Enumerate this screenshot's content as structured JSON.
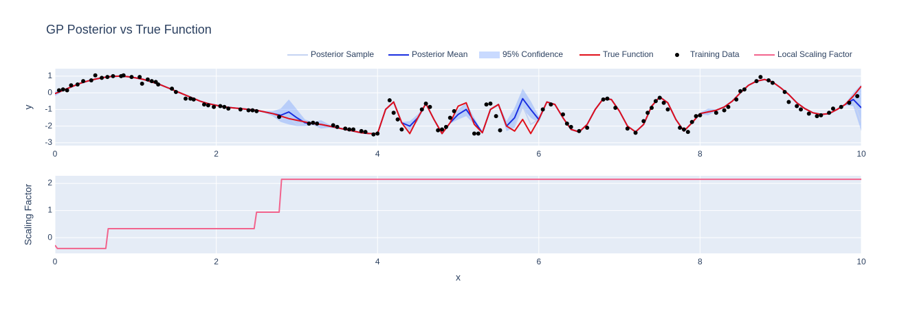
{
  "chart_data": [
    {
      "type": "line",
      "title": "GP Posterior vs True Function",
      "y_label": "y",
      "xlim": [
        0,
        10
      ],
      "xticks": [
        0,
        2,
        4,
        6,
        8,
        10
      ],
      "ylim": [
        -3.17,
        1.45
      ],
      "yticks": [
        -3,
        -2,
        -1,
        0,
        1
      ],
      "grid": true,
      "legend": "top right",
      "x": [
        0,
        0.1,
        0.2,
        0.3,
        0.4,
        0.5,
        0.6,
        0.7,
        0.8,
        0.9,
        1,
        1.1,
        1.2,
        1.3,
        1.4,
        1.5,
        1.6,
        1.7,
        1.8,
        1.9,
        2,
        2.1,
        2.2,
        2.3,
        2.4,
        2.5,
        2.6,
        2.7,
        2.8,
        2.9,
        3,
        3.1,
        3.2,
        3.3,
        3.4,
        3.5,
        3.6,
        3.7,
        3.8,
        3.9,
        4,
        4.1,
        4.2,
        4.3,
        4.4,
        4.5,
        4.6,
        4.7,
        4.8,
        4.9,
        5,
        5.1,
        5.2,
        5.3,
        5.4,
        5.5,
        5.6,
        5.7,
        5.8,
        5.9,
        6,
        6.1,
        6.2,
        6.3,
        6.4,
        6.5,
        6.6,
        6.7,
        6.8,
        6.9,
        7,
        7.1,
        7.2,
        7.3,
        7.4,
        7.5,
        7.6,
        7.7,
        7.8,
        7.9,
        8,
        8.1,
        8.2,
        8.3,
        8.4,
        8.5,
        8.6,
        8.7,
        8.8,
        8.9,
        9,
        9.1,
        9.2,
        9.3,
        9.4,
        9.5,
        9.6,
        9.7,
        9.8,
        9.9,
        10
      ],
      "series": [
        {
          "name": "Posterior Sample",
          "mode": "lines",
          "color": "#c5d3f2",
          "values": [
            -0.05,
            0.15,
            0.35,
            0.55,
            0.7,
            0.82,
            0.92,
            0.98,
            1.0,
            0.97,
            0.9,
            0.8,
            0.65,
            0.5,
            0.3,
            0.1,
            -0.1,
            -0.3,
            -0.5,
            -0.65,
            -0.75,
            -0.85,
            -0.9,
            -0.95,
            -1.0,
            -1.05,
            -1.15,
            -1.25,
            -1.6,
            -1.5,
            -1.9,
            -1.8,
            -1.85,
            -1.9,
            -2.0,
            -2.1,
            -2.2,
            -2.3,
            -2.4,
            -2.45,
            -2.45,
            -1.0,
            -0.55,
            -1.8,
            -2.3,
            -1.5,
            -0.65,
            -1.6,
            -2.45,
            -1.8,
            -1.3,
            -0.8,
            -1.7,
            -2.4,
            -1.0,
            -0.7,
            -2.0,
            -2.0,
            -0.8,
            -1.9,
            -1.6,
            -0.55,
            -0.7,
            -1.5,
            -2.2,
            -2.35,
            -1.9,
            -1.0,
            -0.35,
            -0.4,
            -1.1,
            -2.0,
            -2.35,
            -1.9,
            -0.8,
            -0.25,
            -0.6,
            -1.6,
            -2.3,
            -1.8,
            -1.25,
            -1.15,
            -1.05,
            -0.85,
            -0.5,
            0.0,
            0.45,
            0.7,
            0.8,
            0.65,
            0.3,
            -0.1,
            -0.6,
            -0.95,
            -1.2,
            -1.3,
            -1.25,
            -1.0,
            -0.7,
            -0.4,
            -1.8
          ]
        },
        {
          "name": "Posterior Mean",
          "mode": "lines",
          "color": "#1a2fe0",
          "values": [
            -0.05,
            0.15,
            0.35,
            0.55,
            0.7,
            0.82,
            0.92,
            0.98,
            1.0,
            0.97,
            0.9,
            0.8,
            0.65,
            0.5,
            0.3,
            0.1,
            -0.1,
            -0.3,
            -0.5,
            -0.65,
            -0.75,
            -0.85,
            -0.9,
            -0.95,
            -1.0,
            -1.05,
            -1.15,
            -1.25,
            -1.35,
            -1.15,
            -1.5,
            -1.8,
            -1.85,
            -1.9,
            -2.0,
            -2.1,
            -2.2,
            -2.3,
            -2.4,
            -2.45,
            -2.45,
            -1.0,
            -0.55,
            -1.8,
            -2.0,
            -1.5,
            -0.65,
            -1.6,
            -2.45,
            -1.8,
            -1.3,
            -1.0,
            -1.7,
            -2.4,
            -1.0,
            -0.7,
            -2.0,
            -1.5,
            -0.35,
            -1.0,
            -1.6,
            -0.55,
            -0.7,
            -1.5,
            -2.2,
            -2.35,
            -1.9,
            -1.0,
            -0.35,
            -0.4,
            -1.1,
            -2.0,
            -2.35,
            -1.9,
            -0.8,
            -0.25,
            -0.6,
            -1.6,
            -2.3,
            -1.8,
            -1.25,
            -1.15,
            -1.05,
            -0.85,
            -0.5,
            0.0,
            0.45,
            0.7,
            0.8,
            0.65,
            0.3,
            -0.1,
            -0.6,
            -0.95,
            -1.2,
            -1.3,
            -1.25,
            -1.0,
            -0.7,
            -0.4,
            -0.9
          ]
        },
        {
          "name": "95% Confidence",
          "mode": "band",
          "around": 1,
          "color": "rgba(100,150,255,0.35)",
          "values": [
            0.15,
            0.05,
            0.05,
            0.05,
            0.05,
            0.05,
            0.05,
            0.05,
            0.05,
            0.05,
            0.05,
            0.05,
            0.05,
            0.05,
            0.05,
            0.05,
            0.05,
            0.05,
            0.05,
            0.05,
            0.05,
            0.05,
            0.05,
            0.05,
            0.05,
            0.05,
            0.05,
            0.15,
            0.4,
            0.75,
            0.5,
            0.2,
            0.1,
            0.25,
            0.1,
            0.05,
            0.05,
            0.05,
            0.05,
            0.05,
            0.05,
            0.05,
            0.05,
            0.05,
            0.3,
            0.2,
            0.05,
            0.05,
            0.05,
            0.05,
            0.3,
            0.4,
            0.2,
            0.05,
            0.05,
            0.05,
            0.3,
            0.6,
            0.6,
            0.5,
            0.2,
            0.05,
            0.05,
            0.05,
            0.05,
            0.05,
            0.05,
            0.05,
            0.05,
            0.05,
            0.05,
            0.05,
            0.05,
            0.05,
            0.05,
            0.05,
            0.05,
            0.05,
            0.05,
            0.05,
            0.05,
            0.2,
            0.05,
            0.05,
            0.05,
            0.05,
            0.05,
            0.05,
            0.05,
            0.05,
            0.05,
            0.05,
            0.05,
            0.05,
            0.05,
            0.05,
            0.05,
            0.05,
            0.05,
            0.4,
            1.4
          ]
        },
        {
          "name": "True Function",
          "mode": "lines",
          "color": "#e0101a",
          "values": [
            -0.05,
            0.15,
            0.35,
            0.55,
            0.7,
            0.82,
            0.92,
            0.98,
            1.0,
            0.97,
            0.9,
            0.8,
            0.65,
            0.5,
            0.3,
            0.1,
            -0.1,
            -0.3,
            -0.5,
            -0.65,
            -0.75,
            -0.85,
            -0.9,
            -0.95,
            -1.0,
            -1.05,
            -1.15,
            -1.25,
            -1.4,
            -1.55,
            -1.65,
            -1.75,
            -1.85,
            -1.9,
            -2.0,
            -2.1,
            -2.2,
            -2.3,
            -2.4,
            -2.45,
            -2.45,
            -1.0,
            -0.55,
            -1.8,
            -2.45,
            -1.5,
            -0.65,
            -1.6,
            -2.45,
            -1.8,
            -0.8,
            -0.6,
            -1.9,
            -2.4,
            -1.0,
            -0.7,
            -2.0,
            -2.3,
            -1.6,
            -2.45,
            -1.6,
            -0.55,
            -0.7,
            -1.5,
            -2.2,
            -2.35,
            -1.9,
            -1.0,
            -0.35,
            -0.4,
            -1.1,
            -2.0,
            -2.35,
            -1.9,
            -0.8,
            -0.25,
            -0.6,
            -1.6,
            -2.3,
            -1.8,
            -1.25,
            -1.15,
            -1.05,
            -0.85,
            -0.5,
            0.0,
            0.45,
            0.7,
            0.8,
            0.65,
            0.3,
            -0.1,
            -0.6,
            -0.95,
            -1.2,
            -1.3,
            -1.25,
            -1.0,
            -0.7,
            -0.2,
            0.4
          ]
        },
        {
          "name": "Training Data",
          "mode": "markers",
          "color": "#000000",
          "x": [
            0.05,
            0.1,
            0.15,
            0.2,
            0.28,
            0.35,
            0.45,
            0.5,
            0.58,
            0.65,
            0.72,
            0.82,
            0.85,
            0.95,
            1.05,
            1.08,
            1.15,
            1.2,
            1.25,
            1.28,
            1.45,
            1.5,
            1.62,
            1.68,
            1.72,
            1.85,
            1.9,
            1.97,
            2.05,
            2.1,
            2.15,
            2.3,
            2.4,
            2.45,
            2.5,
            2.78,
            3.15,
            3.2,
            3.25,
            3.45,
            3.5,
            3.6,
            3.65,
            3.7,
            3.8,
            3.85,
            3.95,
            4.0,
            4.15,
            4.2,
            4.25,
            4.3,
            4.55,
            4.6,
            4.65,
            4.75,
            4.8,
            4.85,
            4.9,
            4.95,
            5.2,
            5.25,
            5.35,
            5.4,
            5.47,
            5.52,
            6.05,
            6.15,
            6.3,
            6.35,
            6.4,
            6.5,
            6.6,
            6.8,
            6.85,
            6.95,
            7.1,
            7.2,
            7.3,
            7.35,
            7.4,
            7.45,
            7.5,
            7.55,
            7.6,
            7.75,
            7.8,
            7.85,
            7.9,
            7.95,
            8.0,
            8.2,
            8.3,
            8.35,
            8.45,
            8.5,
            8.55,
            8.7,
            8.75,
            8.85,
            8.9,
            9.05,
            9.1,
            9.2,
            9.25,
            9.35,
            9.45,
            9.5,
            9.6,
            9.65,
            9.75,
            9.85,
            9.95
          ],
          "values": [
            0.15,
            0.2,
            0.15,
            0.45,
            0.5,
            0.7,
            0.75,
            1.05,
            0.9,
            0.95,
            1.0,
            1.0,
            1.05,
            0.95,
            0.95,
            0.55,
            0.8,
            0.7,
            0.65,
            0.5,
            0.25,
            0.05,
            -0.35,
            -0.35,
            -0.4,
            -0.7,
            -0.75,
            -0.85,
            -0.8,
            -0.85,
            -0.95,
            -1.0,
            -1.05,
            -1.05,
            -1.1,
            -1.45,
            -1.85,
            -1.8,
            -1.85,
            -1.95,
            -2.05,
            -2.15,
            -2.2,
            -2.2,
            -2.3,
            -2.35,
            -2.5,
            -2.45,
            -0.45,
            -1.2,
            -1.6,
            -2.2,
            -1.0,
            -0.65,
            -0.85,
            -2.25,
            -2.2,
            -2.05,
            -1.5,
            -1.1,
            -2.45,
            -2.45,
            -0.7,
            -0.65,
            -1.4,
            -2.25,
            -1.0,
            -0.7,
            -1.3,
            -1.85,
            -2.05,
            -2.3,
            -2.1,
            -0.4,
            -0.35,
            -0.9,
            -2.15,
            -2.4,
            -1.7,
            -1.2,
            -0.9,
            -0.5,
            -0.3,
            -0.6,
            -1.0,
            -2.1,
            -2.2,
            -2.35,
            -1.75,
            -1.4,
            -1.35,
            -1.2,
            -1.05,
            -0.85,
            -0.4,
            0.1,
            0.2,
            0.7,
            0.95,
            0.75,
            0.6,
            0.05,
            -0.55,
            -0.8,
            -1.0,
            -1.25,
            -1.4,
            -1.35,
            -1.2,
            -0.95,
            -0.85,
            -0.6,
            -0.2
          ]
        }
      ]
    },
    {
      "type": "line",
      "x_label": "x",
      "y_label": "Scaling Factor",
      "xlim": [
        0,
        10
      ],
      "xticks": [
        0,
        2,
        4,
        6,
        8,
        10
      ],
      "ylim": [
        -0.58,
        2.28
      ],
      "yticks": [
        0,
        1,
        2
      ],
      "grid": true,
      "x": [
        0,
        0.03,
        0.63,
        0.66,
        2.47,
        2.5,
        2.78,
        2.81,
        10
      ],
      "series": [
        {
          "name": "Local Scaling Factor",
          "mode": "lines",
          "color": "#f2638c",
          "values": [
            -0.28,
            -0.4,
            -0.4,
            0.33,
            0.33,
            0.94,
            0.94,
            2.15,
            2.15
          ]
        }
      ]
    }
  ]
}
